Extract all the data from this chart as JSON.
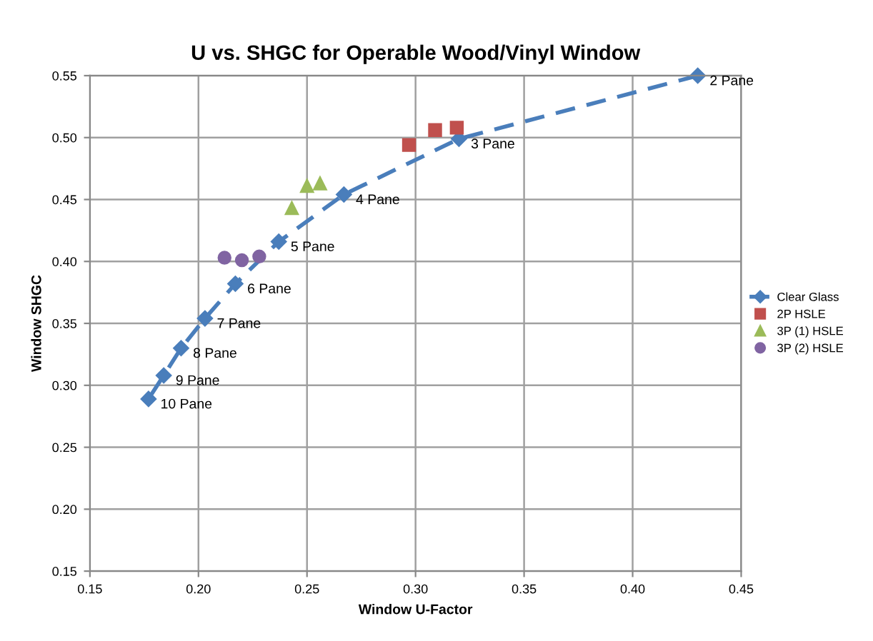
{
  "chart_data": {
    "type": "scatter",
    "title": "U vs. SHGC for Operable Wood/Vinyl Window",
    "xlabel": "Window U-Factor",
    "ylabel": "Window SHGC",
    "xlim": [
      0.15,
      0.45
    ],
    "xticks": [
      {
        "value": 0.15,
        "label": "0.15"
      },
      {
        "value": 0.2,
        "label": "0.20"
      },
      {
        "value": 0.25,
        "label": "0.25"
      },
      {
        "value": 0.3,
        "label": "0.30"
      },
      {
        "value": 0.35,
        "label": "0.35"
      },
      {
        "value": 0.4,
        "label": "0.40"
      },
      {
        "value": 0.45,
        "label": "0.45"
      }
    ],
    "ylim": [
      0.15,
      0.55
    ],
    "yticks": [
      {
        "value": 0.15,
        "label": "0.15"
      },
      {
        "value": 0.2,
        "label": "0.20"
      },
      {
        "value": 0.25,
        "label": "0.25"
      },
      {
        "value": 0.3,
        "label": "0.30"
      },
      {
        "value": 0.35,
        "label": "0.35"
      },
      {
        "value": 0.4,
        "label": "0.40"
      },
      {
        "value": 0.45,
        "label": "0.45"
      },
      {
        "value": 0.5,
        "label": "0.50"
      },
      {
        "value": 0.55,
        "label": "0.55"
      }
    ],
    "grid": true,
    "legend": "right",
    "annotations": [
      {
        "text": "2 Pane",
        "x": 0.43,
        "y": 0.55
      },
      {
        "text": "3 Pane",
        "x": 0.32,
        "y": 0.499
      },
      {
        "text": "4 Pane",
        "x": 0.267,
        "y": 0.454
      },
      {
        "text": "5 Pane",
        "x": 0.237,
        "y": 0.416
      },
      {
        "text": "6 Pane",
        "x": 0.217,
        "y": 0.382
      },
      {
        "text": "7 Pane",
        "x": 0.203,
        "y": 0.354
      },
      {
        "text": "8 Pane",
        "x": 0.192,
        "y": 0.33
      },
      {
        "text": "9 Pane",
        "x": 0.184,
        "y": 0.308
      },
      {
        "text": "10 Pane",
        "x": 0.177,
        "y": 0.289
      }
    ],
    "series": [
      {
        "name": "Clear Glass",
        "type": "line",
        "line_style": "dashed",
        "marker": "diamond",
        "color": "#4a7ebb",
        "x": [
          0.43,
          0.32,
          0.267,
          0.237,
          0.217,
          0.203,
          0.192,
          0.184,
          0.177
        ],
        "values": [
          0.55,
          0.499,
          0.454,
          0.416,
          0.382,
          0.354,
          0.33,
          0.308,
          0.289
        ]
      },
      {
        "name": "2P HSLE",
        "marker": "square",
        "color": "#c0504d",
        "x": [
          0.297,
          0.309,
          0.319
        ],
        "values": [
          0.494,
          0.506,
          0.508
        ]
      },
      {
        "name": "3P (1) HSLE",
        "marker": "triangle",
        "color": "#9bbb59",
        "x": [
          0.243,
          0.25,
          0.256
        ],
        "values": [
          0.443,
          0.461,
          0.463
        ]
      },
      {
        "name": "3P (2) HSLE",
        "marker": "circle",
        "color": "#8064a2",
        "x": [
          0.212,
          0.22,
          0.228
        ],
        "values": [
          0.403,
          0.401,
          0.404
        ]
      }
    ]
  }
}
